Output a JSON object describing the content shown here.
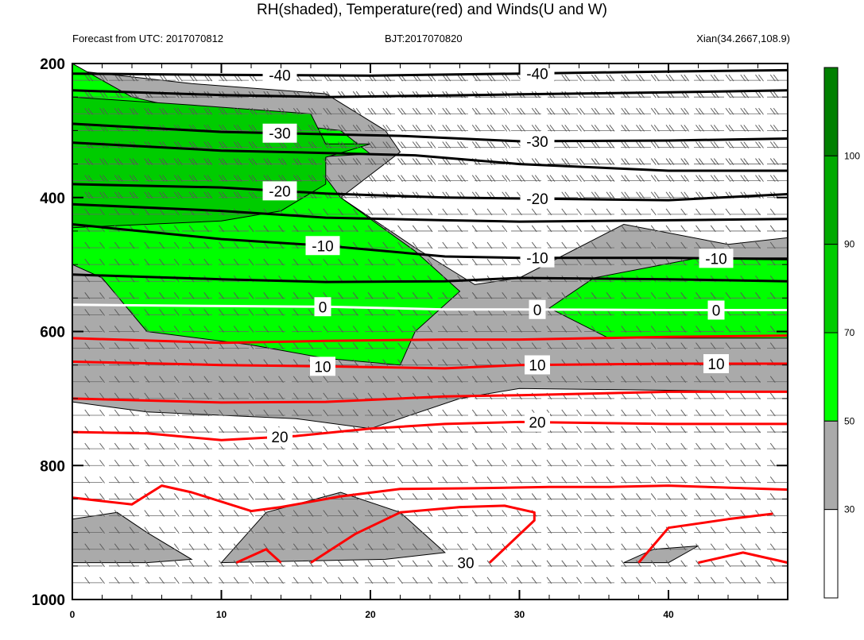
{
  "title": "RH(shaded), Temperature(red) and Winds(U and W)",
  "subtitle_left": "Forecast from UTC: 2017070812",
  "subtitle_center": "BJT:2017070820",
  "subtitle_right": "Xian(34.2667,108.9)",
  "colors": {
    "rh_30_50": "#aaaaaa",
    "rh_50_70": "#00ff00",
    "rh_70_90": "#00cc00",
    "rh_90_100": "#00aa00",
    "rh_100_plus": "#008000",
    "temperature_positive": "#ff0000",
    "temperature_negative": "#000000",
    "temperature_zero": "#ffffff"
  },
  "chart_data": {
    "type": "contour",
    "x_ticks": [
      "0",
      "10",
      "20",
      "30",
      "40"
    ],
    "y_ticks": [
      "200",
      "400",
      "600",
      "800",
      "1000"
    ],
    "xlim": [
      0,
      48
    ],
    "ylim": [
      1000,
      200
    ],
    "colorbar_ticks": [
      "30",
      "50",
      "70",
      "90",
      "100"
    ],
    "colorbar_levels": [
      30,
      50,
      70,
      90,
      100
    ],
    "temperature_contours": [
      {
        "level": -40,
        "labels": [
          "-40",
          "-40"
        ],
        "p": [
          [
            0,
            215
          ],
          [
            10,
            217
          ],
          [
            20,
            218
          ],
          [
            30,
            215
          ],
          [
            40,
            212
          ],
          [
            48,
            210
          ]
        ]
      },
      {
        "level": -40,
        "labels": [],
        "p": [
          [
            0,
            240
          ],
          [
            10,
            247
          ],
          [
            17,
            250
          ],
          [
            24,
            248
          ],
          [
            30,
            246
          ],
          [
            40,
            243
          ],
          [
            48,
            240
          ]
        ]
      },
      {
        "level": -30,
        "labels": [
          "-30",
          "-30"
        ],
        "p": [
          [
            0,
            290
          ],
          [
            10,
            302
          ],
          [
            16,
            305
          ],
          [
            22,
            308
          ],
          [
            30,
            316
          ],
          [
            40,
            315
          ],
          [
            48,
            312
          ]
        ]
      },
      {
        "level": -30,
        "labels": [],
        "p": [
          [
            0,
            318
          ],
          [
            10,
            330
          ],
          [
            16,
            333
          ],
          [
            23,
            337
          ],
          [
            30,
            350
          ],
          [
            40,
            360
          ],
          [
            48,
            360
          ]
        ]
      },
      {
        "level": -20,
        "labels": [
          "-20",
          "-20"
        ],
        "p": [
          [
            0,
            380
          ],
          [
            10,
            385
          ],
          [
            17,
            394
          ],
          [
            25,
            400
          ],
          [
            32,
            402
          ],
          [
            40,
            404
          ],
          [
            48,
            395
          ]
        ]
      },
      {
        "level": -20,
        "labels": [],
        "p": [
          [
            0,
            410
          ],
          [
            10,
            420
          ],
          [
            17,
            430
          ],
          [
            25,
            434
          ],
          [
            30,
            436
          ],
          [
            40,
            434
          ],
          [
            48,
            432
          ]
        ]
      },
      {
        "level": -10,
        "labels": [
          "-10",
          "-10",
          "-10"
        ],
        "p": [
          [
            0,
            440
          ],
          [
            10,
            462
          ],
          [
            17,
            472
          ],
          [
            25,
            488
          ],
          [
            30,
            490
          ],
          [
            40,
            490
          ],
          [
            48,
            492
          ]
        ]
      },
      {
        "level": -10,
        "labels": [],
        "p": [
          [
            0,
            515
          ],
          [
            10,
            522
          ],
          [
            17,
            526
          ],
          [
            25,
            525
          ],
          [
            30,
            520
          ],
          [
            40,
            522
          ],
          [
            48,
            525
          ]
        ]
      },
      {
        "level": 0,
        "labels": [
          "0",
          "0",
          "0"
        ],
        "p": [
          [
            0,
            560
          ],
          [
            10,
            562
          ],
          [
            17,
            563
          ],
          [
            25,
            567
          ],
          [
            30,
            567
          ],
          [
            40,
            568
          ],
          [
            48,
            568
          ]
        ]
      },
      {
        "level": 10,
        "labels": [],
        "p": [
          [
            0,
            610
          ],
          [
            10,
            617
          ],
          [
            17,
            614
          ],
          [
            25,
            612
          ],
          [
            30,
            612
          ],
          [
            40,
            608
          ],
          [
            48,
            606
          ]
        ]
      },
      {
        "level": 10,
        "labels": [
          "10",
          "10",
          "10"
        ],
        "p": [
          [
            0,
            645
          ],
          [
            10,
            650
          ],
          [
            17,
            652
          ],
          [
            25,
            655
          ],
          [
            30,
            650
          ],
          [
            40,
            648
          ],
          [
            48,
            648
          ]
        ]
      },
      {
        "level": 10,
        "labels": [],
        "p": [
          [
            0,
            700
          ],
          [
            10,
            706
          ],
          [
            17,
            705
          ],
          [
            25,
            697
          ],
          [
            30,
            695
          ],
          [
            40,
            690
          ],
          [
            48,
            690
          ]
        ]
      },
      {
        "level": 20,
        "labels": [
          "20",
          "20"
        ],
        "p": [
          [
            0,
            750
          ],
          [
            5,
            752
          ],
          [
            10,
            762
          ],
          [
            15,
            756
          ],
          [
            20,
            745
          ],
          [
            25,
            738
          ],
          [
            30,
            735
          ],
          [
            40,
            738
          ],
          [
            48,
            738
          ]
        ]
      },
      {
        "level": 20,
        "labels": [],
        "p": [
          [
            0,
            848
          ],
          [
            4,
            858
          ],
          [
            6,
            830
          ],
          [
            8,
            840
          ],
          [
            12,
            868
          ],
          [
            14,
            862
          ],
          [
            18,
            846
          ],
          [
            22,
            835
          ],
          [
            27,
            834
          ],
          [
            32,
            832
          ],
          [
            36,
            832
          ],
          [
            40,
            830
          ],
          [
            48,
            836
          ]
        ]
      },
      {
        "level": 30,
        "labels": [
          "30"
        ],
        "p": [
          [
            11,
            945
          ],
          [
            13,
            925
          ],
          [
            14,
            945
          ]
        ]
      },
      {
        "level": 30,
        "labels": [],
        "p": [
          [
            16,
            945
          ],
          [
            19,
            902
          ],
          [
            22,
            870
          ],
          [
            26,
            862
          ],
          [
            29,
            860
          ],
          [
            31,
            870
          ],
          [
            31,
            882
          ],
          [
            28,
            945
          ]
        ]
      },
      {
        "level": 30,
        "labels": [],
        "p": [
          [
            38,
            945
          ],
          [
            40,
            893
          ],
          [
            44,
            880
          ],
          [
            47,
            872
          ]
        ]
      },
      {
        "level": 30,
        "labels": [],
        "p": [
          [
            42,
            945
          ],
          [
            45,
            930
          ],
          [
            48,
            945
          ]
        ]
      }
    ],
    "rh_regions": [
      {
        "range": "30-50",
        "p": [
          [
            0,
            210
          ],
          [
            8,
            230
          ],
          [
            17,
            245
          ],
          [
            21,
            300
          ],
          [
            22,
            332
          ],
          [
            18,
            400
          ],
          [
            23,
            475
          ],
          [
            27,
            530
          ],
          [
            30,
            520
          ],
          [
            37,
            440
          ],
          [
            44,
            470
          ],
          [
            48,
            460
          ],
          [
            48,
            690
          ],
          [
            30,
            685
          ],
          [
            26,
            700
          ],
          [
            20,
            745
          ],
          [
            15,
            730
          ],
          [
            5,
            720
          ],
          [
            0,
            705
          ]
        ]
      },
      {
        "range": "30-50",
        "p": [
          [
            0,
            880
          ],
          [
            3,
            870
          ],
          [
            5,
            900
          ],
          [
            8,
            940
          ],
          [
            5,
            945
          ],
          [
            0,
            945
          ]
        ]
      },
      {
        "range": "30-50",
        "p": [
          [
            10,
            945
          ],
          [
            13,
            870
          ],
          [
            18,
            840
          ],
          [
            22,
            870
          ],
          [
            25,
            930
          ],
          [
            21,
            940
          ],
          [
            10,
            945
          ]
        ]
      },
      {
        "range": "30-50",
        "p": [
          [
            37,
            945
          ],
          [
            39,
            925
          ],
          [
            42,
            920
          ],
          [
            40,
            945
          ]
        ]
      },
      {
        "range": "50-70",
        "p": [
          [
            0,
            200
          ],
          [
            4,
            250
          ],
          [
            10,
            280
          ],
          [
            18,
            300
          ],
          [
            20,
            335
          ],
          [
            16,
            340
          ],
          [
            18,
            400
          ],
          [
            23,
            480
          ],
          [
            26,
            540
          ],
          [
            23,
            600
          ],
          [
            22,
            650
          ],
          [
            17,
            640
          ],
          [
            12,
            620
          ],
          [
            5,
            600
          ],
          [
            2,
            520
          ],
          [
            0,
            500
          ]
        ]
      },
      {
        "range": "50-70",
        "p": [
          [
            32,
            565
          ],
          [
            35,
            520
          ],
          [
            42,
            490
          ],
          [
            48,
            490
          ],
          [
            48,
            610
          ],
          [
            36,
            610
          ]
        ]
      },
      {
        "range": "70-90",
        "p": [
          [
            0,
            250
          ],
          [
            8,
            262
          ],
          [
            16,
            275
          ],
          [
            17,
            320
          ],
          [
            20,
            320
          ],
          [
            17,
            340
          ],
          [
            17,
            380
          ],
          [
            14,
            420
          ],
          [
            10,
            435
          ],
          [
            5,
            440
          ],
          [
            0,
            445
          ]
        ]
      }
    ],
    "wind_levels": [
      225,
      250,
      275,
      300,
      325,
      350,
      375,
      400,
      425,
      450,
      475,
      500,
      525,
      550,
      575,
      600,
      625,
      650,
      675,
      700,
      725,
      750,
      775,
      800,
      825,
      850,
      875,
      900,
      925,
      950,
      975
    ]
  }
}
